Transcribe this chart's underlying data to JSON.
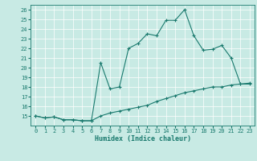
{
  "title": "",
  "xlabel": "Humidex (Indice chaleur)",
  "ylabel": "",
  "xlim": [
    -0.5,
    23.5
  ],
  "ylim": [
    14,
    26.5
  ],
  "yticks": [
    15,
    16,
    17,
    18,
    19,
    20,
    21,
    22,
    23,
    24,
    25,
    26
  ],
  "xticks": [
    0,
    1,
    2,
    3,
    4,
    5,
    6,
    7,
    8,
    9,
    10,
    11,
    12,
    13,
    14,
    15,
    16,
    17,
    18,
    19,
    20,
    21,
    22,
    23
  ],
  "bg_color": "#c8eae4",
  "line_color": "#1a7a6e",
  "line1_x": [
    0,
    1,
    2,
    3,
    4,
    5,
    6,
    7,
    8,
    9,
    10,
    11,
    12,
    13,
    14,
    15,
    16,
    17,
    18,
    19,
    20,
    21,
    22,
    23
  ],
  "line1_y": [
    15.0,
    14.8,
    14.9,
    14.6,
    14.6,
    14.5,
    14.5,
    20.5,
    17.8,
    18.0,
    22.0,
    22.5,
    23.5,
    23.3,
    24.9,
    24.9,
    26.0,
    23.3,
    21.8,
    21.9,
    22.3,
    21.0,
    18.3,
    18.3
  ],
  "line2_x": [
    0,
    1,
    2,
    3,
    4,
    5,
    6,
    7,
    8,
    9,
    10,
    11,
    12,
    13,
    14,
    15,
    16,
    17,
    18,
    19,
    20,
    21,
    22,
    23
  ],
  "line2_y": [
    15.0,
    14.8,
    14.9,
    14.6,
    14.6,
    14.5,
    14.5,
    15.0,
    15.3,
    15.5,
    15.7,
    15.9,
    16.1,
    16.5,
    16.8,
    17.1,
    17.4,
    17.6,
    17.8,
    18.0,
    18.0,
    18.2,
    18.3,
    18.4
  ]
}
